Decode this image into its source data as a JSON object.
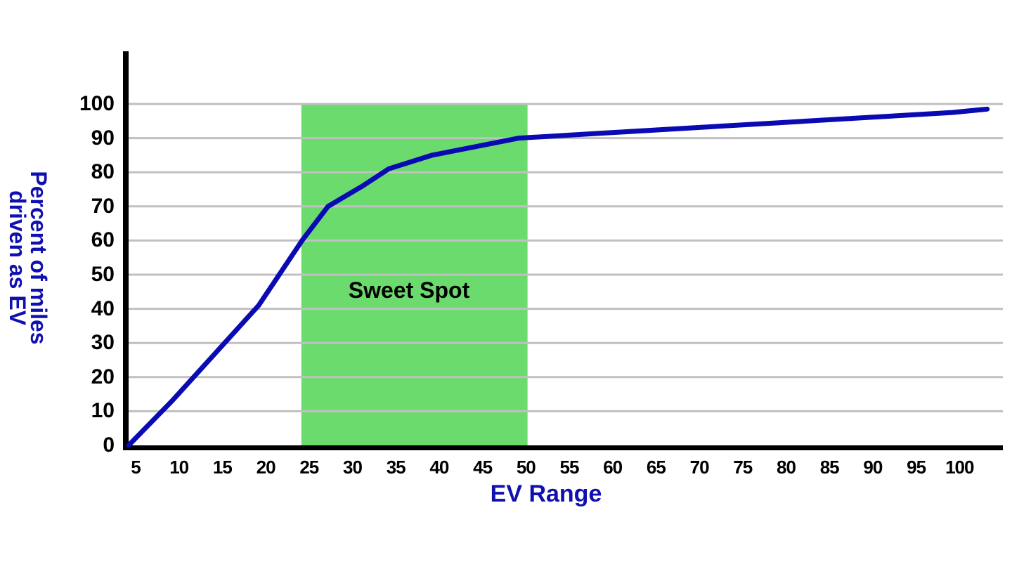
{
  "chart_data": {
    "type": "line",
    "title": "",
    "xlabel": "EV Range",
    "ylabel": "Percent of miles driven as EV",
    "ylabel_lines": [
      "Percent of miles",
      "driven as EV"
    ],
    "xlim": [
      5,
      104
    ],
    "ylim": [
      0,
      100
    ],
    "grid": {
      "horizontal": true,
      "vertical": false,
      "color": "#c0c0c0"
    },
    "x_ticks": [
      5,
      10,
      15,
      20,
      25,
      30,
      35,
      40,
      45,
      50,
      55,
      60,
      65,
      70,
      75,
      80,
      85,
      90,
      95,
      100
    ],
    "y_ticks": [
      0,
      10,
      20,
      30,
      40,
      50,
      60,
      70,
      80,
      90,
      100
    ],
    "series": [
      {
        "name": "Percent of miles driven as EV",
        "color": "#0a0ab4",
        "x": [
          5,
          10,
          15,
          20,
          25,
          28,
          32,
          35,
          40,
          45,
          50,
          60,
          70,
          80,
          90,
          100,
          104
        ],
        "y": [
          0,
          13,
          27,
          41,
          60,
          70,
          76,
          81,
          85,
          87.5,
          90,
          91.5,
          93,
          94.5,
          96,
          97.5,
          98.5
        ]
      }
    ],
    "annotations": [
      {
        "type": "shaded_region",
        "label": "Sweet Spot",
        "x_start": 25,
        "x_end": 51,
        "y_start": 0,
        "y_end": 100,
        "color": "#6cdb6e"
      }
    ],
    "legend": null
  },
  "labels": {
    "x_axis": "EV Range",
    "y_axis_line1": "Percent of miles",
    "y_axis_line2": "driven as EV",
    "band": "Sweet Spot"
  }
}
